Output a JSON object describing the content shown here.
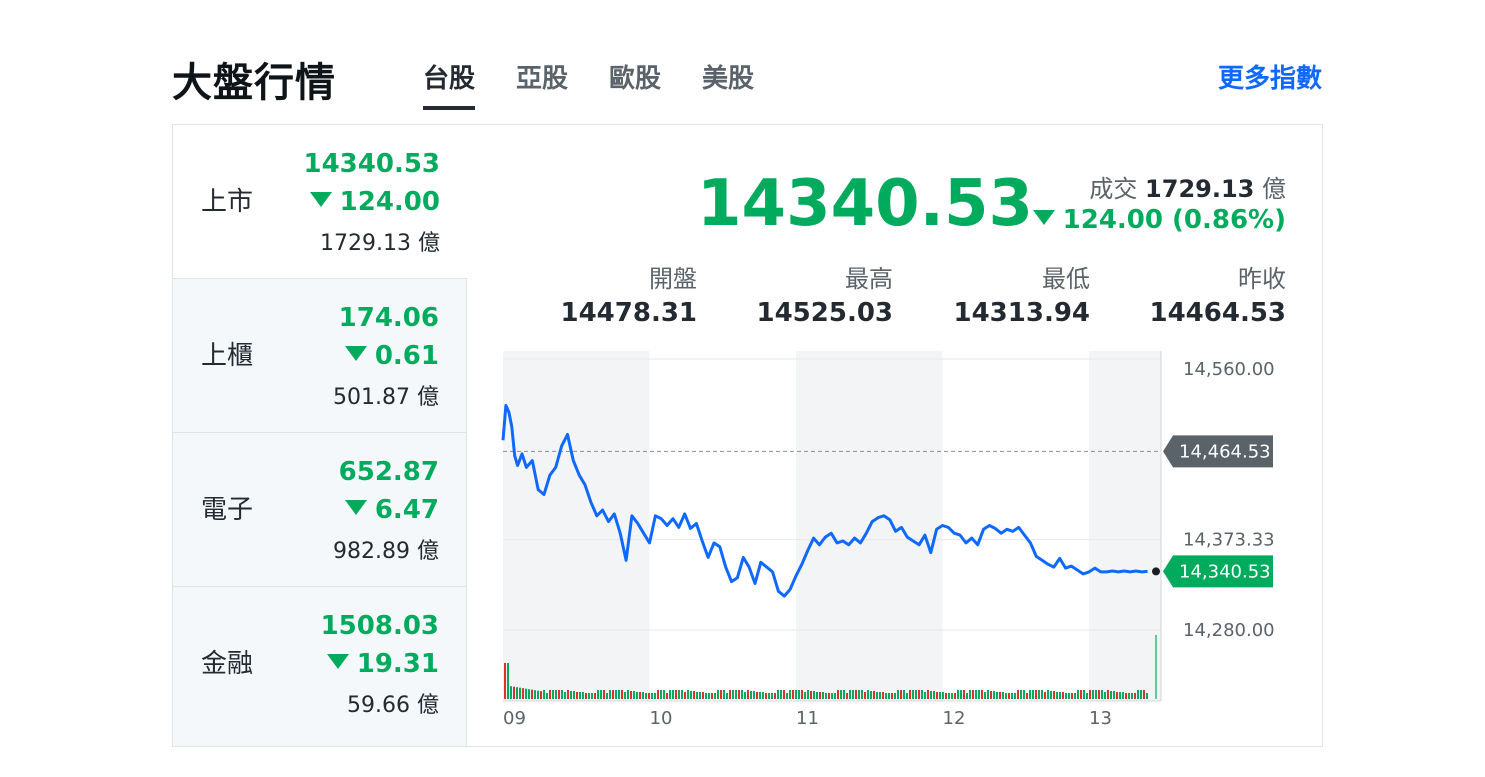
{
  "header": {
    "title": "大盤行情",
    "tabs": [
      {
        "label": "台股",
        "active": true
      },
      {
        "label": "亞股",
        "active": false
      },
      {
        "label": "歐股",
        "active": false
      },
      {
        "label": "美股",
        "active": false
      }
    ],
    "more_link": "更多指數"
  },
  "indices": [
    {
      "name": "上市",
      "value": "14340.53",
      "change": "124.00",
      "volume": "1729.13 億",
      "direction": "down",
      "active": true
    },
    {
      "name": "上櫃",
      "value": "174.06",
      "change": "0.61",
      "volume": "501.87 億",
      "direction": "down",
      "active": false
    },
    {
      "name": "電子",
      "value": "652.87",
      "change": "6.47",
      "volume": "982.89 億",
      "direction": "down",
      "active": false
    },
    {
      "name": "金融",
      "value": "1508.03",
      "change": "19.31",
      "volume": "59.66 億",
      "direction": "down",
      "active": false
    }
  ],
  "detail": {
    "price": "14340.53",
    "volume_label": "成交",
    "volume_value": "1729.13",
    "volume_unit": "億",
    "change": "124.00 (0.86%)",
    "stats": [
      {
        "label": "開盤",
        "value": "14478.31"
      },
      {
        "label": "最高",
        "value": "14525.03"
      },
      {
        "label": "最低",
        "value": "14313.94"
      },
      {
        "label": "昨收",
        "value": "14464.53"
      }
    ]
  },
  "colors": {
    "up": "#e0302c",
    "down": "#00ab5e",
    "line": "#0f69ff",
    "link": "#0f69ff"
  },
  "chart_data": {
    "type": "line",
    "y_ticks": [
      "14,560.00",
      "14,373.33",
      "14,280.00"
    ],
    "y_tick_values": [
      14560,
      14373.33,
      14280
    ],
    "ylim": [
      14280,
      14560
    ],
    "x_tick_labels": [
      "09",
      "10",
      "11",
      "12",
      "13"
    ],
    "x_range": [
      9,
      13.4
    ],
    "reference_label": "14,464.53",
    "reference_value": 14464.53,
    "current_label": "14,340.53",
    "current_value": 14340.53,
    "series": [
      {
        "x": [
          9.0,
          9.02,
          9.04,
          9.06,
          9.08,
          9.1,
          9.13,
          9.16,
          9.2,
          9.24,
          9.28,
          9.32,
          9.36,
          9.4,
          9.44,
          9.48,
          9.52,
          9.56,
          9.6,
          9.64,
          9.68,
          9.72,
          9.76,
          9.8,
          9.84,
          9.88,
          9.92,
          9.96,
          10.0,
          10.04,
          10.08,
          10.12,
          10.16,
          10.2,
          10.24,
          10.28,
          10.32,
          10.36,
          10.4,
          10.44,
          10.48,
          10.52,
          10.56,
          10.6,
          10.64,
          10.68,
          10.72,
          10.76,
          10.8,
          10.84,
          10.88,
          10.92,
          10.96,
          11.0,
          11.04,
          11.08,
          11.12,
          11.16,
          11.2,
          11.24,
          11.28,
          11.32,
          11.36,
          11.4,
          11.44,
          11.48,
          11.52,
          11.56,
          11.6,
          11.64,
          11.68,
          11.72,
          11.76,
          11.8,
          11.84,
          11.88,
          11.92,
          11.96,
          12.0,
          12.04,
          12.08,
          12.12,
          12.16,
          12.2,
          12.24,
          12.28,
          12.32,
          12.36,
          12.4,
          12.44,
          12.48,
          12.52,
          12.56,
          12.6,
          12.64,
          12.68,
          12.72,
          12.76,
          12.8,
          12.84,
          12.88,
          12.92,
          12.96,
          13.0,
          13.04,
          13.08,
          13.12,
          13.16,
          13.2,
          13.24,
          13.28,
          13.32,
          13.36,
          13.4
        ],
        "y": [
          14476,
          14512,
          14505,
          14490,
          14460,
          14450,
          14462,
          14448,
          14455,
          14425,
          14420,
          14440,
          14448,
          14470,
          14482,
          14455,
          14440,
          14430,
          14412,
          14398,
          14404,
          14392,
          14400,
          14380,
          14352,
          14398,
          14390,
          14380,
          14370,
          14398,
          14395,
          14388,
          14395,
          14386,
          14400,
          14385,
          14390,
          14372,
          14355,
          14370,
          14366,
          14345,
          14330,
          14334,
          14355,
          14345,
          14328,
          14350,
          14345,
          14340,
          14320,
          14315,
          14322,
          14336,
          14348,
          14362,
          14375,
          14368,
          14376,
          14380,
          14370,
          14372,
          14368,
          14375,
          14370,
          14380,
          14392,
          14396,
          14398,
          14394,
          14382,
          14386,
          14376,
          14372,
          14368,
          14378,
          14360,
          14384,
          14388,
          14386,
          14380,
          14378,
          14370,
          14375,
          14368,
          14384,
          14388,
          14385,
          14380,
          14384,
          14382,
          14386,
          14378,
          14370,
          14356,
          14352,
          14348,
          14345,
          14354,
          14344,
          14346,
          14342,
          14338,
          14340,
          14344,
          14340,
          14340,
          14341,
          14340,
          14341,
          14340,
          14341,
          14340,
          14340.53
        ]
      }
    ]
  }
}
